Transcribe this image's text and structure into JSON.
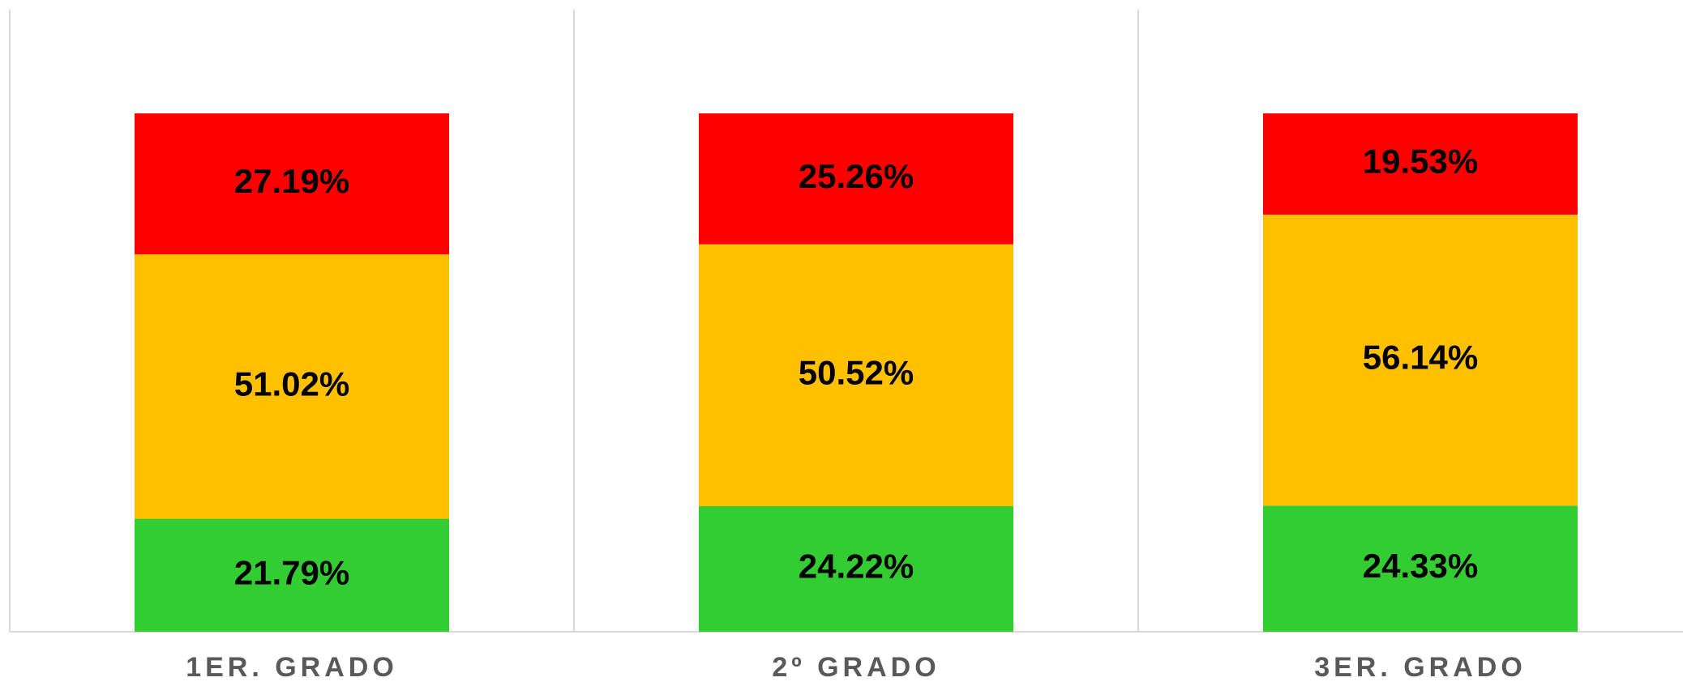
{
  "chart_data": {
    "type": "stacked_bar",
    "categories": [
      "1ER. GRADO",
      "2º GRADO",
      "3ER. GRADO"
    ],
    "ylim": [
      0,
      100
    ],
    "series": [
      {
        "color": "#33cc33",
        "values": [
          21.79,
          24.22,
          24.33
        ],
        "value_labels": [
          "21.79%",
          "24.22%",
          "24.33%"
        ]
      },
      {
        "color": "#ffc000",
        "values": [
          51.02,
          50.52,
          56.14
        ],
        "value_labels": [
          "51.02%",
          "50.52%",
          "56.14%"
        ]
      },
      {
        "color": "#ff0000",
        "values": [
          27.19,
          25.26,
          19.53
        ],
        "value_labels": [
          "27.19%",
          "25.26%",
          "19.53%"
        ]
      }
    ]
  }
}
